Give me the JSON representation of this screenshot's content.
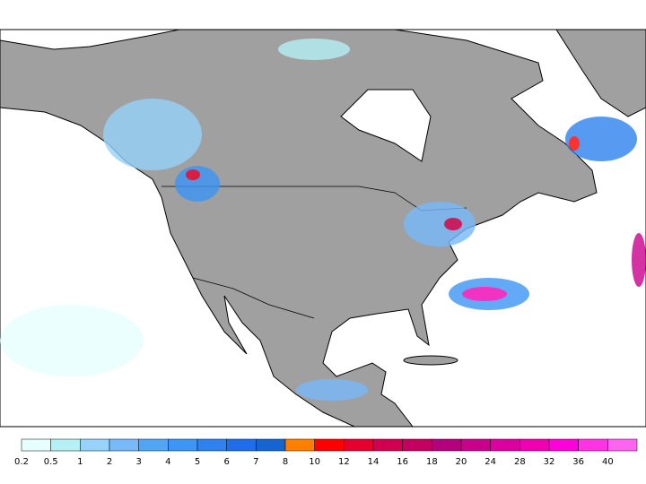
{
  "colorbar": {
    "labels": [
      0.2,
      0.5,
      1,
      2,
      3,
      4,
      5,
      6,
      7,
      8,
      10,
      12,
      14,
      16,
      18,
      20,
      24,
      28,
      32,
      36,
      40
    ],
    "colors": [
      "#e6ffff",
      "#b4f0f4",
      "#96d2fa",
      "#78b9fa",
      "#50a5f5",
      "#3c96f5",
      "#2d82f0",
      "#1e6eeb",
      "#1464d2",
      "#ff7f00",
      "#ff0000",
      "#e6002d",
      "#d20050",
      "#c3005f",
      "#b4007d",
      "#c8008c",
      "#dc00a0",
      "#f000b4",
      "#ff00dc",
      "#ff32e6",
      "#ff64f0"
    ]
  }
}
